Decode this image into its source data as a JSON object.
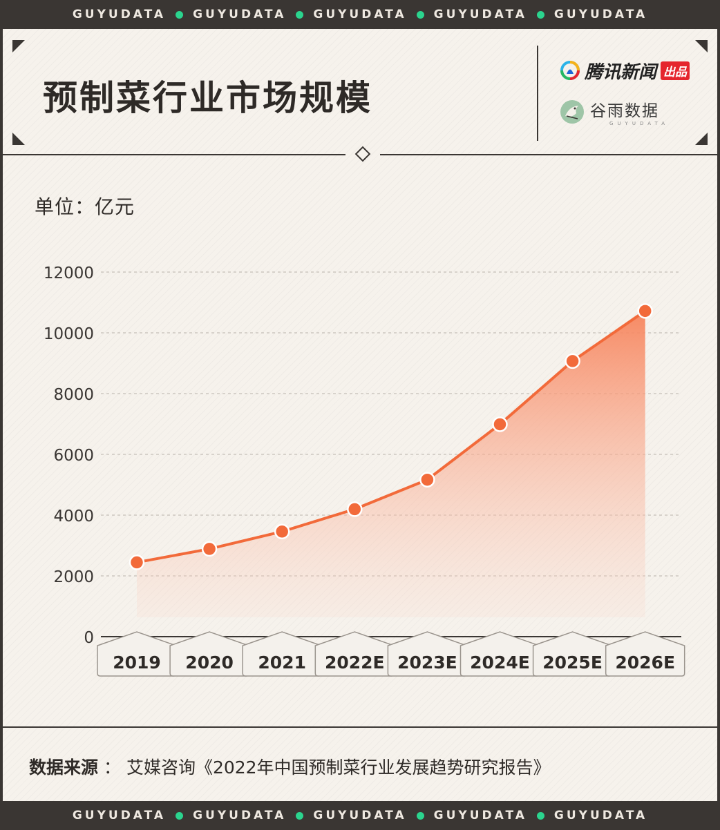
{
  "banner": {
    "word": "GUYUDATA",
    "dot_color": "#2bd48e"
  },
  "header": {
    "title": "预制菜行业市场规模",
    "brand_primary": "腾讯新闻",
    "brand_primary_tag": "出品",
    "brand_secondary": "谷雨数据",
    "brand_secondary_sub": "GUYUDATA"
  },
  "unit_label": "单位：亿元",
  "chart_data": {
    "type": "area",
    "categories": [
      "2019",
      "2020",
      "2021",
      "2022E",
      "2023E",
      "2024E",
      "2025E",
      "2026E"
    ],
    "values": [
      2445,
      2888,
      3459,
      4196,
      5165,
      6990,
      9070,
      10720
    ],
    "ylim": [
      0,
      12000
    ],
    "yticks": [
      0,
      2000,
      4000,
      6000,
      8000,
      10000,
      12000
    ],
    "grid": true,
    "legend": "none",
    "line_color": "#f26a3a",
    "fill_color": "#f7845c"
  },
  "footer": {
    "source_label": "数据来源",
    "separator": "：",
    "source_text": "艾媒咨询《2022年中国预制菜行业发展趋势研究报告》"
  }
}
